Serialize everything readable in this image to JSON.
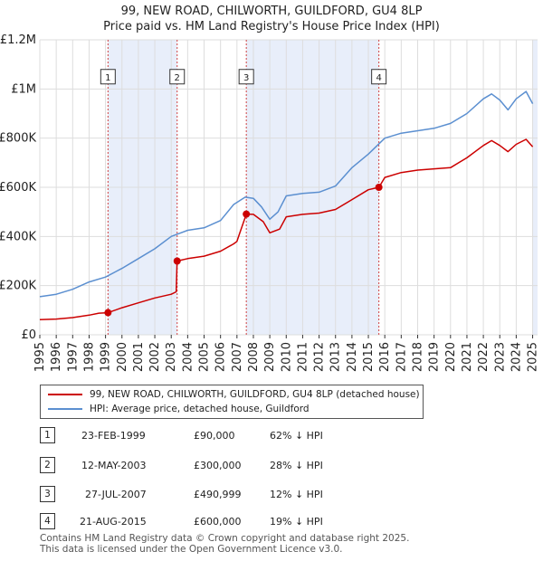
{
  "chart_data": {
    "type": "line",
    "title": "99, NEW ROAD, CHILWORTH, GUILDFORD, GU4 8LP",
    "subtitle": "Price paid vs. HM Land Registry's House Price Index (HPI)",
    "ylim": [
      0,
      1200000
    ],
    "xlim": [
      1995,
      2025.3
    ],
    "y_ticks": [
      {
        "value": 0,
        "label": "£0"
      },
      {
        "value": 200000,
        "label": "£200K"
      },
      {
        "value": 400000,
        "label": "£400K"
      },
      {
        "value": 600000,
        "label": "£600K"
      },
      {
        "value": 800000,
        "label": "£800K"
      },
      {
        "value": 1000000,
        "label": "£1M"
      },
      {
        "value": 1200000,
        "label": "£1.2M"
      }
    ],
    "x_ticks": [
      "1995",
      "1996",
      "1997",
      "1998",
      "1999",
      "2000",
      "2001",
      "2002",
      "2003",
      "2004",
      "2005",
      "2006",
      "2007",
      "2008",
      "2009",
      "2010",
      "2011",
      "2012",
      "2013",
      "2014",
      "2015",
      "2016",
      "2017",
      "2018",
      "2019",
      "2020",
      "2021",
      "2022",
      "2023",
      "2024",
      "2025"
    ],
    "grid": true,
    "series": [
      {
        "name": "99, NEW ROAD, CHILWORTH, GUILDFORD, GU4 8LP (detached house)",
        "color": "#cc0000",
        "points": [
          [
            1995.0,
            62000
          ],
          [
            1996.0,
            64000
          ],
          [
            1997.0,
            70000
          ],
          [
            1998.0,
            80000
          ],
          [
            1998.6,
            88000
          ],
          [
            1999.15,
            90000
          ],
          [
            2000.0,
            110000
          ],
          [
            2001.0,
            130000
          ],
          [
            2002.0,
            150000
          ],
          [
            2003.0,
            165000
          ],
          [
            2003.3,
            175000
          ],
          [
            2003.36,
            300000
          ],
          [
            2004.0,
            310000
          ],
          [
            2005.0,
            320000
          ],
          [
            2006.0,
            340000
          ],
          [
            2006.8,
            370000
          ],
          [
            2007.0,
            380000
          ],
          [
            2007.2,
            420000
          ],
          [
            2007.57,
            490999
          ],
          [
            2008.0,
            490000
          ],
          [
            2008.6,
            460000
          ],
          [
            2009.0,
            415000
          ],
          [
            2009.6,
            430000
          ],
          [
            2010.0,
            480000
          ],
          [
            2011.0,
            490000
          ],
          [
            2012.0,
            495000
          ],
          [
            2013.0,
            510000
          ],
          [
            2014.0,
            550000
          ],
          [
            2015.0,
            590000
          ],
          [
            2015.64,
            600000
          ],
          [
            2016.0,
            640000
          ],
          [
            2017.0,
            660000
          ],
          [
            2018.0,
            670000
          ],
          [
            2019.0,
            675000
          ],
          [
            2020.0,
            680000
          ],
          [
            2021.0,
            720000
          ],
          [
            2022.0,
            770000
          ],
          [
            2022.5,
            790000
          ],
          [
            2023.0,
            770000
          ],
          [
            2023.5,
            745000
          ],
          [
            2024.0,
            775000
          ],
          [
            2024.6,
            795000
          ],
          [
            2025.0,
            765000
          ]
        ]
      },
      {
        "name": "HPI: Average price, detached house, Guildford",
        "color": "#5b8fd0",
        "points": [
          [
            1995.0,
            155000
          ],
          [
            1996.0,
            165000
          ],
          [
            1997.0,
            185000
          ],
          [
            1998.0,
            215000
          ],
          [
            1999.0,
            235000
          ],
          [
            2000.0,
            270000
          ],
          [
            2001.0,
            310000
          ],
          [
            2002.0,
            350000
          ],
          [
            2003.0,
            400000
          ],
          [
            2004.0,
            425000
          ],
          [
            2005.0,
            435000
          ],
          [
            2006.0,
            465000
          ],
          [
            2006.8,
            530000
          ],
          [
            2007.5,
            560000
          ],
          [
            2008.0,
            555000
          ],
          [
            2008.5,
            520000
          ],
          [
            2009.0,
            470000
          ],
          [
            2009.5,
            500000
          ],
          [
            2010.0,
            565000
          ],
          [
            2011.0,
            575000
          ],
          [
            2012.0,
            580000
          ],
          [
            2013.0,
            605000
          ],
          [
            2014.0,
            680000
          ],
          [
            2015.0,
            735000
          ],
          [
            2016.0,
            800000
          ],
          [
            2017.0,
            820000
          ],
          [
            2018.0,
            830000
          ],
          [
            2019.0,
            840000
          ],
          [
            2020.0,
            860000
          ],
          [
            2021.0,
            900000
          ],
          [
            2022.0,
            960000
          ],
          [
            2022.5,
            980000
          ],
          [
            2023.0,
            955000
          ],
          [
            2023.5,
            915000
          ],
          [
            2024.0,
            960000
          ],
          [
            2024.6,
            990000
          ],
          [
            2025.0,
            940000
          ]
        ]
      }
    ],
    "sales": [
      {
        "num": "1",
        "year": 1999.15,
        "price": 90000
      },
      {
        "num": "2",
        "year": 2003.36,
        "price": 300000
      },
      {
        "num": "3",
        "year": 2007.57,
        "price": 490999
      },
      {
        "num": "4",
        "year": 2015.64,
        "price": 600000
      }
    ]
  },
  "legend": {
    "property_label": "99, NEW ROAD, CHILWORTH, GUILDFORD, GU4 8LP (detached house)",
    "hpi_label": "HPI: Average price, detached house, Guildford"
  },
  "transactions": [
    {
      "num": "1",
      "date": "23-FEB-1999",
      "price": "£90,000",
      "hpi": "62% ↓ HPI"
    },
    {
      "num": "2",
      "date": "12-MAY-2003",
      "price": "£300,000",
      "hpi": "28% ↓ HPI"
    },
    {
      "num": "3",
      "date": "27-JUL-2007",
      "price": "£490,999",
      "hpi": "12% ↓ HPI"
    },
    {
      "num": "4",
      "date": "21-AUG-2015",
      "price": "£600,000",
      "hpi": "19% ↓ HPI"
    }
  ],
  "footer": {
    "line1": "Contains HM Land Registry data © Crown copyright and database right 2025.",
    "line2": "This data is licensed under the Open Government Licence v3.0."
  },
  "colors": {
    "property": "#cc0000",
    "hpi": "#5b8fd0",
    "shade": "#e8eefa",
    "grid": "#dddddd"
  }
}
